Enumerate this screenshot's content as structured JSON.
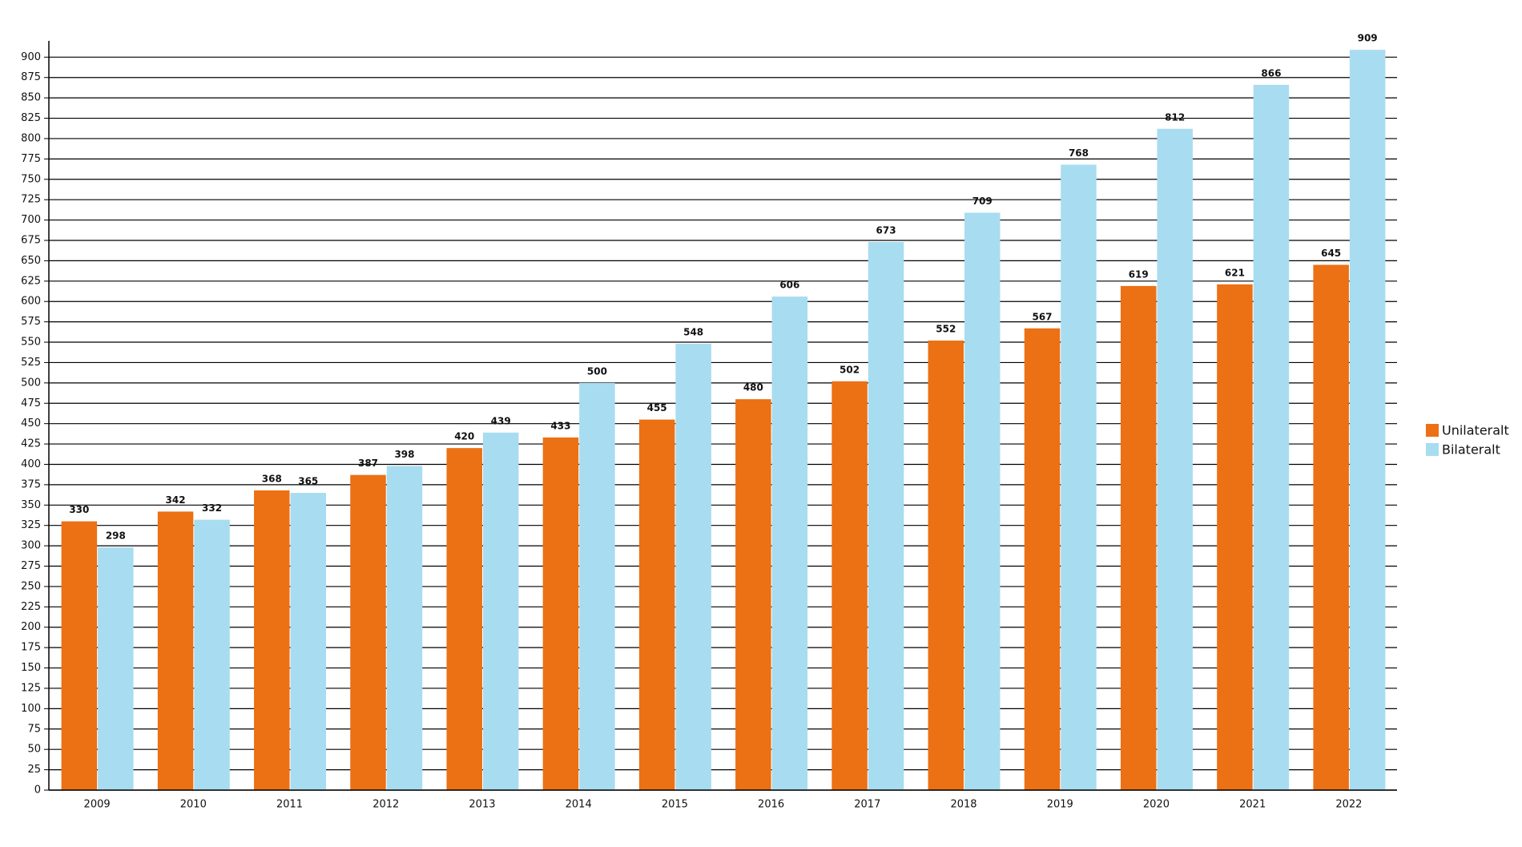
{
  "chart_data": {
    "type": "bar",
    "categories": [
      "2009",
      "2010",
      "2011",
      "2012",
      "2013",
      "2014",
      "2015",
      "2016",
      "2017",
      "2018",
      "2019",
      "2020",
      "2021",
      "2022"
    ],
    "series": [
      {
        "name": "Unilateralt",
        "color": "#ec7014",
        "values": [
          330,
          342,
          368,
          387,
          420,
          433,
          455,
          480,
          502,
          552,
          567,
          619,
          621,
          645
        ]
      },
      {
        "name": "Bilateralt",
        "color": "#a8dcf1",
        "values": [
          298,
          332,
          365,
          398,
          439,
          500,
          548,
          606,
          673,
          709,
          768,
          812,
          866,
          909
        ]
      }
    ],
    "ylim": [
      0,
      920
    ],
    "yticks": [
      0,
      25,
      50,
      75,
      100,
      125,
      150,
      175,
      200,
      225,
      250,
      275,
      300,
      325,
      350,
      375,
      400,
      425,
      450,
      475,
      500,
      525,
      550,
      575,
      600,
      625,
      650,
      675,
      700,
      725,
      750,
      775,
      800,
      825,
      850,
      875,
      900
    ],
    "grid": true,
    "legend": "right"
  }
}
